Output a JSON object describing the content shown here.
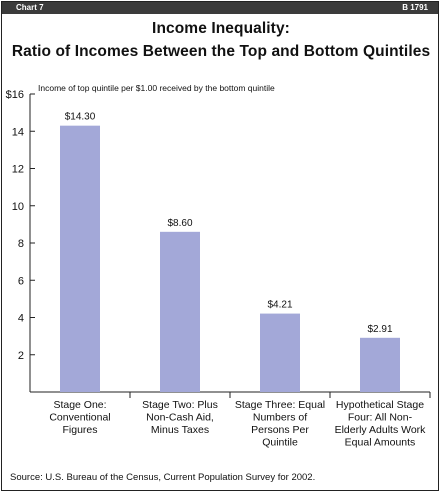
{
  "header": {
    "chart_tag": "Chart 7",
    "doc_id": "B 1791"
  },
  "chart_data": {
    "type": "bar",
    "title": "Income Inequality:",
    "subtitle": "Ratio of Incomes Between the Top and Bottom Quintiles",
    "ylabel": "Income of top quintile per $1.00 received by the bottom quintile",
    "ylim": [
      0,
      16
    ],
    "yticks": [
      {
        "value": 2,
        "label": "2"
      },
      {
        "value": 4,
        "label": "4"
      },
      {
        "value": 6,
        "label": "6"
      },
      {
        "value": 8,
        "label": "8"
      },
      {
        "value": 10,
        "label": "10"
      },
      {
        "value": 12,
        "label": "12"
      },
      {
        "value": 14,
        "label": "14"
      },
      {
        "value": 16,
        "label": "$16"
      }
    ],
    "categories": [
      [
        "Stage One:",
        "Conventional",
        "Figures"
      ],
      [
        "Stage Two: Plus",
        "Non-Cash Aid,",
        "Minus Taxes"
      ],
      [
        "Stage Three: Equal",
        "Numbers of",
        "Persons Per",
        "Quintile"
      ],
      [
        "Hypothetical Stage",
        "Four: All Non-",
        "Elderly Adults Work",
        "Equal Amounts"
      ]
    ],
    "values": [
      14.3,
      8.6,
      4.21,
      2.91
    ],
    "data_labels": [
      "$14.30",
      "$8.60",
      "$4.21",
      "$2.91"
    ],
    "bar_color": "#a3a8d8",
    "grid": false
  },
  "footer": {
    "source": "Source: U.S. Bureau of the Census, Current Population Survey for 2002."
  }
}
